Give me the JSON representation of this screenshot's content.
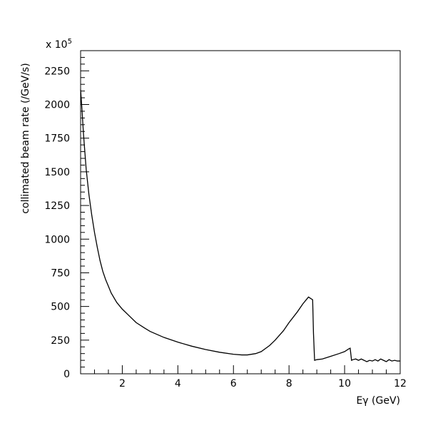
{
  "chart_data": {
    "type": "line",
    "xlabel": "Eγ (GeV)",
    "ylabel": "collimated beam rate (/GeV/s)",
    "y_multiplier": "x 10",
    "y_multiplier_exponent": "5",
    "xlim": [
      0.5,
      12
    ],
    "ylim": [
      0,
      2400
    ],
    "grid": false,
    "x_tick_labels": [
      "2",
      "4",
      "6",
      "8",
      "10",
      "12"
    ],
    "y_tick_labels": [
      "0",
      "250",
      "500",
      "750",
      "1000",
      "1250",
      "1500",
      "1750",
      "2000",
      "2250"
    ],
    "series": [
      {
        "x": [
          0.5,
          0.55,
          0.6,
          0.7,
          0.8,
          0.9,
          1.0,
          1.1,
          1.2,
          1.3,
          1.4,
          1.5,
          1.6,
          1.8,
          2.0,
          2.2,
          2.5,
          2.8,
          3.0,
          3.5,
          4.0,
          4.5,
          5.0,
          5.5,
          6.0,
          6.3,
          6.5,
          6.8,
          7.0,
          7.3,
          7.5,
          7.8,
          8.0,
          8.3,
          8.5,
          8.7,
          8.85,
          8.88,
          8.92,
          9.0,
          9.2,
          9.5,
          9.8,
          10.0,
          10.15,
          10.2,
          10.25,
          10.3,
          10.4,
          10.5,
          10.6,
          10.7,
          10.75,
          10.8,
          10.9,
          11.0,
          11.1,
          11.2,
          11.3,
          11.4,
          11.5,
          11.6,
          11.7,
          11.8,
          11.9,
          12.0
        ],
        "y": [
          2110,
          1960,
          1790,
          1520,
          1330,
          1180,
          1050,
          940,
          840,
          760,
          700,
          650,
          600,
          530,
          480,
          440,
          380,
          340,
          315,
          270,
          235,
          205,
          180,
          160,
          145,
          140,
          140,
          150,
          165,
          210,
          250,
          320,
          380,
          460,
          520,
          570,
          550,
          300,
          100,
          105,
          110,
          130,
          150,
          165,
          185,
          190,
          100,
          105,
          110,
          100,
          110,
          100,
          95,
          90,
          100,
          95,
          105,
          95,
          110,
          100,
          90,
          105,
          95,
          100,
          95,
          95
        ]
      }
    ]
  }
}
